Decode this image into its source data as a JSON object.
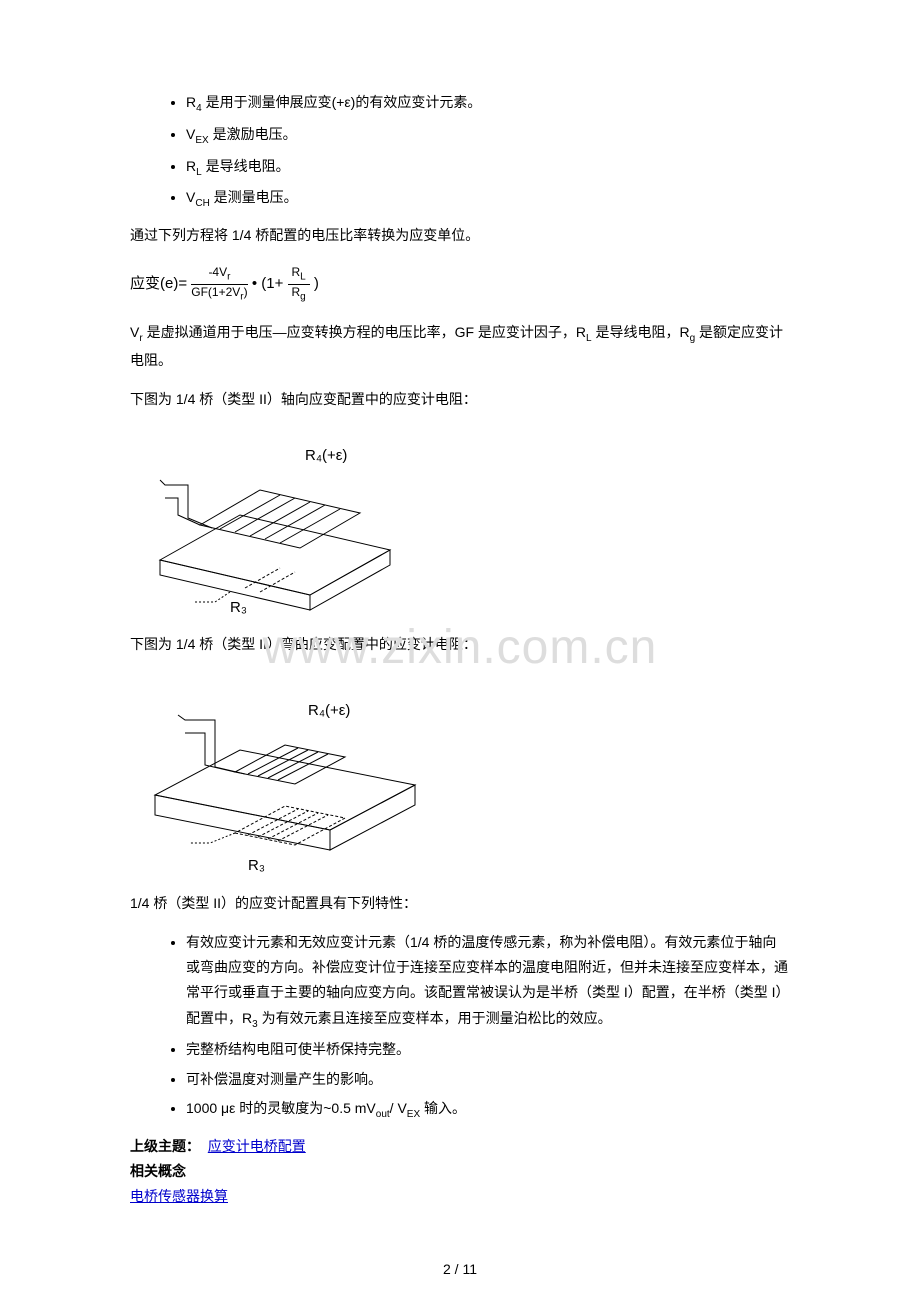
{
  "top_bullets": [
    {
      "sym": "R",
      "sub": "4",
      "tail": " 是用于测量伸展应变(+ε)的有效应变计元素。"
    },
    {
      "sym": "V",
      "sub": "EX",
      "tail": " 是激励电压。"
    },
    {
      "sym": "R",
      "sub": "L",
      "tail": " 是导线电阻。"
    },
    {
      "sym": "V",
      "sub": "CH",
      "tail": " 是测量电压。"
    }
  ],
  "para1": "通过下列方程将 1/4 桥配置的电压比率转换为应变单位。",
  "eq": {
    "prefix": "应变(e)=",
    "f1_num": "-4V",
    "f1_num_sub": "r",
    "f1_den": "GF(1+2V",
    "f1_den_sub": "r",
    "f1_den_tail": ")",
    "mid": " • (1+ ",
    "f2_num": "R",
    "f2_num_sub": "L",
    "f2_den": "R",
    "f2_den_sub": "g",
    "tail": ")"
  },
  "para_vr": "V<sub>r</sub> 是虚拟通道用于电压—应变转换方程的电压比率，GF 是应变计因子，R<sub>L</sub> 是导线电阻，R<sub>g</sub> 是额定应变计电阻。",
  "para2": "下图为 1/4 桥（类型 II）轴向应变配置中的应变计电阻：",
  "diagram1": {
    "label_r4": "R₄(+ε)",
    "label_r3": "R₃",
    "stroke": "#000000",
    "fill": "none",
    "hatch": "#000000"
  },
  "para3": "下图为 1/4 桥（类型 II）弯曲应变配置中的应变计电阻：",
  "diagram2": {
    "label_r4": "R₄(+ε)",
    "label_r3": "R₃",
    "stroke": "#000000",
    "fill": "none"
  },
  "para4": "1/4 桥（类型 II）的应变计配置具有下列特性：",
  "bottom_bullets": [
    "有效应变计元素和无效应变计元素（1/4 桥的温度传感元素，称为补偿电阻）。有效元素位于轴向或弯曲应变的方向。补偿应变计位于连接至应变样本的温度电阻附近，但并未连接至应变样本，通常平行或垂直于主要的轴向应变方向。该配置常被误认为是半桥（类型 I）配置，在半桥（类型 I）配置中，R<sub>3</sub> 为有效元素且连接至应变样本，用于测量泊松比的效应。",
    "完整桥结构电阻可使半桥保持完整。",
    "可补偿温度对测量产生的影响。",
    "1000 με 时的灵敏度为~0.5 mV<sub>out</sub>/ V<sub>EX</sub> 输入。"
  ],
  "footer": {
    "parent_label": "上级主题：",
    "parent_link": "应变计电桥配置",
    "related_label": "相关概念",
    "related_link": "电桥传感器换算"
  },
  "watermark": "www.zixin.com.cn",
  "page_num": "2 / 11"
}
